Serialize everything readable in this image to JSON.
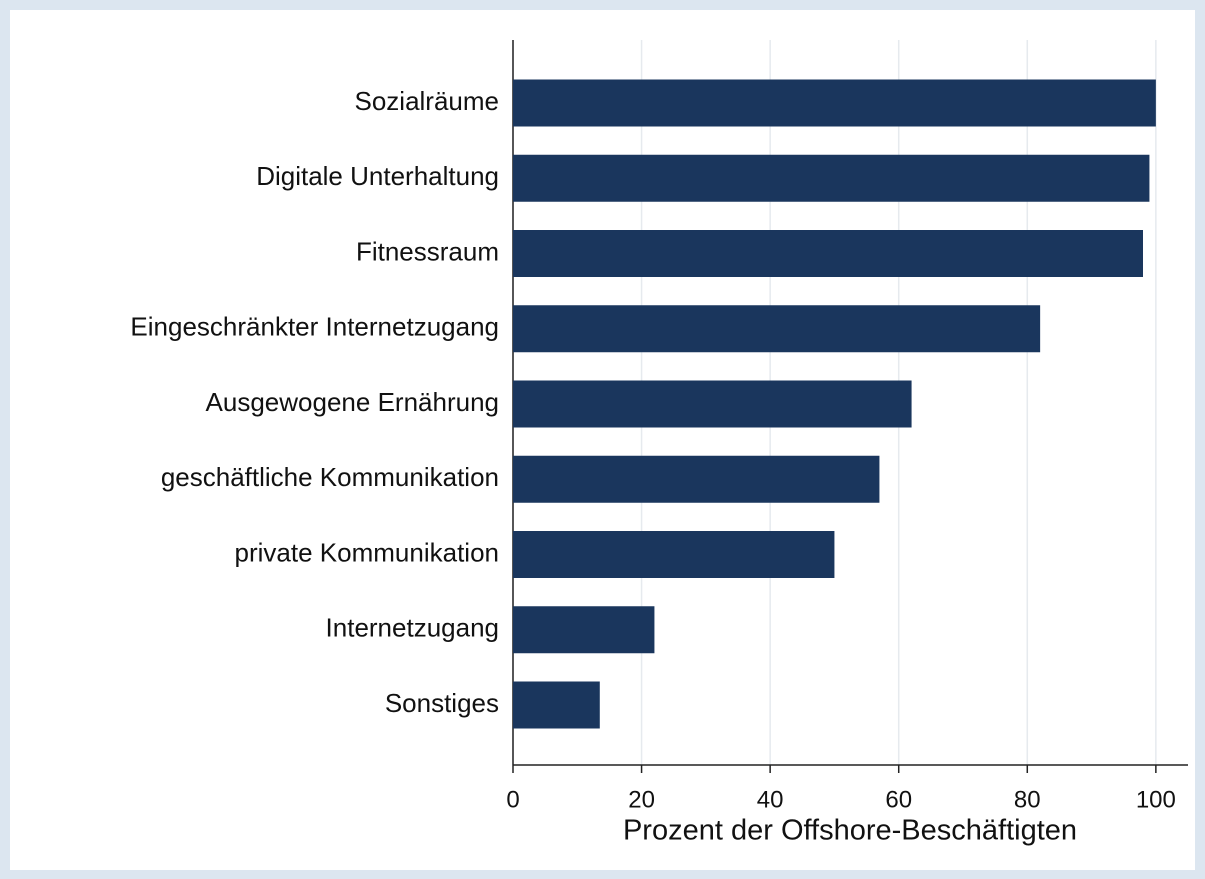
{
  "chart_data": {
    "type": "bar",
    "orientation": "horizontal",
    "categories": [
      "Sozialräume",
      "Digitale Unterhaltung",
      "Fitnessraum",
      "Eingeschränkter Internetzugang",
      "Ausgewogene Ernährung",
      "geschäftliche Kommunikation",
      "private Kommunikation",
      "Internetzugang",
      "Sonstiges"
    ],
    "values": [
      100,
      99,
      98,
      82,
      62,
      57,
      50,
      22,
      13.5
    ],
    "color": "#1a365d",
    "xlabel": "Prozent der Offshore-Beschäftigten",
    "xlim": [
      0,
      105
    ],
    "xticks": [
      0,
      20,
      40,
      60,
      80,
      100
    ],
    "grid": true
  }
}
